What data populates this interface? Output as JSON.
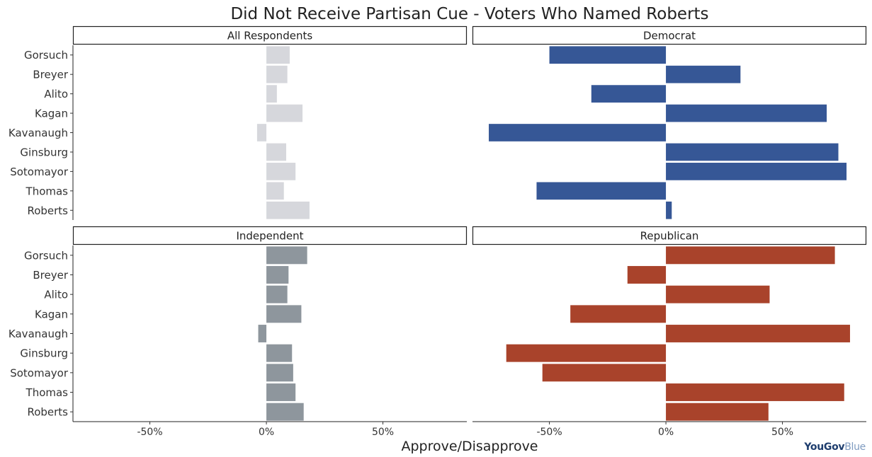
{
  "chart_data": {
    "type": "bar",
    "orientation": "horizontal",
    "title": "Did Not Receive Partisan Cue - Voters Who Named Roberts",
    "xlabel": "Approve/Disapprove",
    "xlim": [
      -0.83,
      0.86
    ],
    "xticks": [
      -0.5,
      0,
      0.5
    ],
    "xtick_labels": [
      "-50%",
      "0%",
      "50%"
    ],
    "categories": [
      "Gorsuch",
      "Breyer",
      "Alito",
      "Kagan",
      "Kavanaugh",
      "Ginsburg",
      "Sotomayor",
      "Thomas",
      "Roberts"
    ],
    "grid": false,
    "panels": [
      {
        "name": "All Respondents",
        "color": "#d6d7dc",
        "values": [
          0.1,
          0.09,
          0.045,
          0.155,
          -0.04,
          0.085,
          0.125,
          0.075,
          0.185
        ]
      },
      {
        "name": "Democrat",
        "color": "#365796",
        "values": [
          -0.5,
          0.32,
          -0.32,
          0.69,
          -0.76,
          0.74,
          0.775,
          -0.555,
          0.025
        ]
      },
      {
        "name": "Independent",
        "color": "#8e969d",
        "values": [
          0.175,
          0.095,
          0.09,
          0.15,
          -0.035,
          0.11,
          0.115,
          0.125,
          0.16
        ]
      },
      {
        "name": "Republican",
        "color": "#a9432b",
        "values": [
          0.725,
          -0.165,
          0.445,
          -0.41,
          0.79,
          -0.685,
          -0.53,
          0.765,
          0.44
        ]
      }
    ]
  },
  "brand": {
    "part1": "YouGov",
    "part2": "Blue"
  }
}
